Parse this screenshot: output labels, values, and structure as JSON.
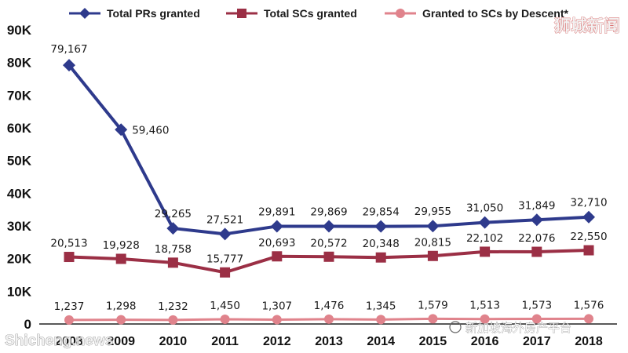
{
  "chart_data": {
    "type": "line",
    "title": "",
    "xlabel": "",
    "ylabel": "",
    "categories": [
      "2008",
      "2009",
      "2010",
      "2011",
      "2012",
      "2013",
      "2014",
      "2015",
      "2016",
      "2017",
      "2018"
    ],
    "ylim": [
      0,
      90000
    ],
    "y_ticks": [
      {
        "value": 0,
        "label": "0"
      },
      {
        "value": 10000,
        "label": "10K"
      },
      {
        "value": 20000,
        "label": "20K"
      },
      {
        "value": 30000,
        "label": "30K"
      },
      {
        "value": 40000,
        "label": "40K"
      },
      {
        "value": 50000,
        "label": "50K"
      },
      {
        "value": 60000,
        "label": "60K"
      },
      {
        "value": 70000,
        "label": "70K"
      },
      {
        "value": 80000,
        "label": "80K"
      },
      {
        "value": 90000,
        "label": "90K"
      }
    ],
    "grid": false,
    "legend_position": "top",
    "series": [
      {
        "name": "Total PRs granted",
        "color": "#2e3a8c",
        "marker": "diamond",
        "values": [
          79167,
          59460,
          29265,
          27521,
          29891,
          29869,
          29854,
          29955,
          31050,
          31849,
          32710
        ],
        "labels": [
          "79,167",
          "59,460",
          "29,265",
          "27,521",
          "29,891",
          "29,869",
          "29,854",
          "29,955",
          "31,050",
          "31,849",
          "32,710"
        ]
      },
      {
        "name": "Total SCs granted",
        "color": "#9b2f45",
        "marker": "square",
        "values": [
          20513,
          19928,
          18758,
          15777,
          20693,
          20572,
          20348,
          20815,
          22102,
          22076,
          22550
        ],
        "labels": [
          "20,513",
          "19,928",
          "18,758",
          "15,777",
          "20,693",
          "20,572",
          "20,348",
          "20,815",
          "22,102",
          "22,076",
          "22,550"
        ]
      },
      {
        "name": "Granted to SCs by Descent*",
        "color": "#e0838c",
        "marker": "circle",
        "values": [
          1237,
          1298,
          1232,
          1450,
          1307,
          1476,
          1345,
          1579,
          1513,
          1573,
          1576
        ],
        "labels": [
          "1,237",
          "1,298",
          "1,232",
          "1,450",
          "1,307",
          "1,476",
          "1,345",
          "1,579",
          "1,513",
          "1,573",
          "1,576"
        ]
      }
    ]
  },
  "watermarks": {
    "top_right": "狮城新闻",
    "bottom_left": "Shicheng.news",
    "bottom_right": "新加坡海外房产平台"
  }
}
